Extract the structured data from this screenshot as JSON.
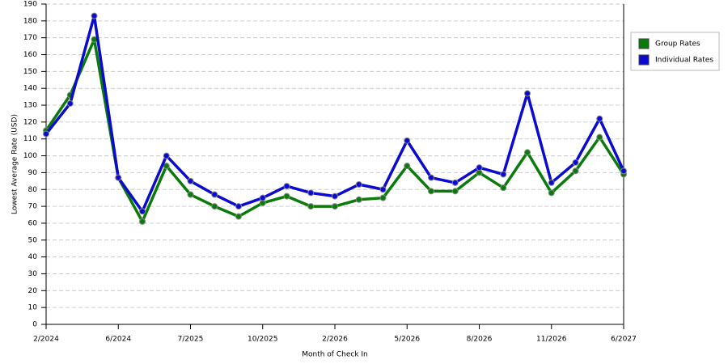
{
  "chart_data": {
    "type": "line",
    "x_label": "Month of Check In",
    "y_label": "Lowest Average Rate (USD)",
    "categories": [
      "2/2024",
      null,
      null,
      "6/2024",
      null,
      null,
      "7/2025",
      null,
      null,
      "10/2025",
      null,
      null,
      "2/2026",
      null,
      null,
      "5/2026",
      null,
      null,
      "8/2026",
      null,
      null,
      "11/2026",
      null,
      null,
      "6/2027"
    ],
    "series": [
      {
        "name": "Group Rates",
        "color": "#0a7a0a",
        "values": [
          115,
          136,
          169,
          87,
          61,
          94,
          77,
          70,
          64,
          72,
          76,
          70,
          70,
          74,
          75,
          94,
          79,
          79,
          90,
          81,
          102,
          78,
          91,
          111,
          89
        ]
      },
      {
        "name": "Individual Rates",
        "color": "#0a0ad0",
        "values": [
          113,
          131,
          183,
          87,
          67,
          100,
          85,
          77,
          70,
          75,
          82,
          78,
          76,
          83,
          80,
          109,
          87,
          84,
          93,
          89,
          137,
          84,
          96,
          122,
          91
        ]
      }
    ],
    "ylim": [
      0,
      190
    ],
    "yticks": [
      0,
      10,
      20,
      30,
      40,
      50,
      60,
      70,
      80,
      90,
      100,
      110,
      120,
      130,
      140,
      150,
      160,
      170,
      180,
      190
    ],
    "grid": true,
    "legend": "right"
  }
}
